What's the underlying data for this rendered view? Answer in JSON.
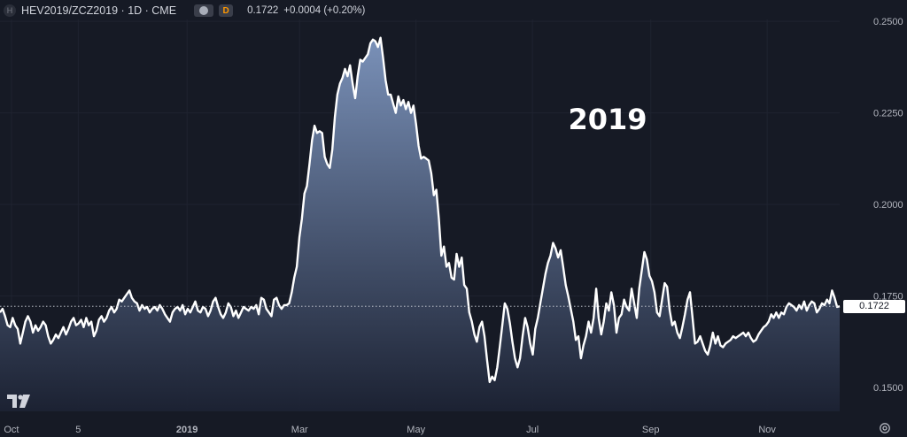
{
  "header": {
    "symbol_icon": "H",
    "symbol": "HEV2019/ZCZ2019 · 1D · CME",
    "badge_letter": "D",
    "last": "0.1722",
    "change": "+0.0004 (+0.20%)"
  },
  "price_label": "0.1722",
  "icons": {
    "logo": "tradingview-logo-icon",
    "settings": "gear-icon"
  },
  "colors": {
    "line": "#ffffff",
    "fill_top": "#7f97c0",
    "fill_bottom": "#1c2233",
    "background": "#161a25"
  },
  "chart_data": {
    "type": "area",
    "annotation": "2019",
    "last_value": 0.1722,
    "ylim": [
      0.1435,
      0.2505
    ],
    "y_ticks": [
      "0.1500",
      "0.1750",
      "0.2000",
      "0.2250",
      "0.2500"
    ],
    "y_tick_values": [
      0.15,
      0.175,
      0.2,
      0.225,
      0.25
    ],
    "x_tick_labels": [
      "Oct",
      "5",
      "2019",
      "Mar",
      "May",
      "Jul",
      "Sep",
      "Nov"
    ],
    "x_tick_values": [
      "2018-10-01",
      "2018-11-05",
      "2019-01-01",
      "2019-03-01",
      "2019-05-01",
      "2019-07-01",
      "2019-09-01",
      "2019-11-01"
    ],
    "xlim": [
      "2018-09-25",
      "2019-12-09"
    ],
    "start_date": "2018-09-25",
    "grid": true,
    "series": [
      {
        "values": [
          0.1705,
          0.1715,
          0.1695,
          0.167,
          0.1665,
          0.169,
          0.167,
          0.166,
          0.162,
          0.165,
          0.168,
          0.1695,
          0.168,
          0.165,
          0.167,
          0.1655,
          0.1665,
          0.168,
          0.167,
          0.164,
          0.162,
          0.163,
          0.1645,
          0.1635,
          0.165,
          0.1665,
          0.1645,
          0.166,
          0.168,
          0.169,
          0.167,
          0.1675,
          0.1685,
          0.1665,
          0.169,
          0.167,
          0.168,
          0.164,
          0.1655,
          0.1685,
          0.1695,
          0.168,
          0.169,
          0.171,
          0.172,
          0.1705,
          0.1715,
          0.174,
          0.1735,
          0.1745,
          0.1755,
          0.1765,
          0.1745,
          0.1735,
          0.173,
          0.171,
          0.1725,
          0.1715,
          0.172,
          0.1705,
          0.1715,
          0.172,
          0.171,
          0.1725,
          0.1715,
          0.17,
          0.169,
          0.168,
          0.1705,
          0.1715,
          0.172,
          0.171,
          0.1725,
          0.17,
          0.1715,
          0.1705,
          0.172,
          0.1735,
          0.171,
          0.1705,
          0.172,
          0.1715,
          0.1695,
          0.171,
          0.1735,
          0.1745,
          0.172,
          0.17,
          0.169,
          0.1705,
          0.173,
          0.172,
          0.1695,
          0.171,
          0.169,
          0.1705,
          0.172,
          0.1715,
          0.171,
          0.172,
          0.1715,
          0.1725,
          0.17,
          0.1745,
          0.174,
          0.1715,
          0.1705,
          0.1695,
          0.174,
          0.1745,
          0.1725,
          0.1715,
          0.1725,
          0.1725,
          0.173,
          0.176,
          0.18,
          0.183,
          0.191,
          0.196,
          0.203,
          0.205,
          0.211,
          0.2175,
          0.2215,
          0.2195,
          0.22,
          0.2195,
          0.213,
          0.211,
          0.21,
          0.215,
          0.224,
          0.23,
          0.233,
          0.2345,
          0.237,
          0.235,
          0.238,
          0.233,
          0.229,
          0.235,
          0.2395,
          0.239,
          0.24,
          0.241,
          0.244,
          0.245,
          0.2445,
          0.243,
          0.2455,
          0.24,
          0.234,
          0.23,
          0.23,
          0.2275,
          0.225,
          0.2295,
          0.227,
          0.2285,
          0.226,
          0.228,
          0.225,
          0.227,
          0.222,
          0.216,
          0.2125,
          0.213,
          0.2125,
          0.212,
          0.2085,
          0.2025,
          0.204,
          0.196,
          0.186,
          0.1885,
          0.183,
          0.184,
          0.18,
          0.1795,
          0.1865,
          0.183,
          0.1855,
          0.178,
          0.177,
          0.1705,
          0.168,
          0.1645,
          0.1625,
          0.1665,
          0.168,
          0.164,
          0.1575,
          0.1515,
          0.153,
          0.152,
          0.1555,
          0.161,
          0.167,
          0.173,
          0.1715,
          0.1675,
          0.1625,
          0.158,
          0.1555,
          0.158,
          0.164,
          0.169,
          0.1665,
          0.162,
          0.159,
          0.166,
          0.169,
          0.173,
          0.177,
          0.181,
          0.184,
          0.186,
          0.1895,
          0.188,
          0.1855,
          0.1875,
          0.183,
          0.178,
          0.175,
          0.1715,
          0.168,
          0.163,
          0.164,
          0.158,
          0.1615,
          0.164,
          0.168,
          0.165,
          0.169,
          0.177,
          0.169,
          0.1645,
          0.168,
          0.173,
          0.171,
          0.176,
          0.1725,
          0.165,
          0.169,
          0.17,
          0.174,
          0.172,
          0.171,
          0.177,
          0.173,
          0.169,
          0.177,
          0.182,
          0.187,
          0.185,
          0.1805,
          0.179,
          0.176,
          0.1705,
          0.1695,
          0.174,
          0.1785,
          0.1775,
          0.171,
          0.167,
          0.168,
          0.165,
          0.1635,
          0.1665,
          0.17,
          0.174,
          0.176,
          0.169,
          0.162,
          0.1625,
          0.164,
          0.162,
          0.16,
          0.159,
          0.1615,
          0.165,
          0.162,
          0.164,
          0.1615,
          0.161,
          0.162,
          0.1625,
          0.163,
          0.164,
          0.1635,
          0.164,
          0.1645,
          0.165,
          0.164,
          0.165,
          0.1635,
          0.1625,
          0.163,
          0.1645,
          0.1655,
          0.1665,
          0.167,
          0.168,
          0.17,
          0.169,
          0.1705,
          0.169,
          0.1705,
          0.17,
          0.172,
          0.173,
          0.1725,
          0.172,
          0.171,
          0.1725,
          0.1715,
          0.1735,
          0.171,
          0.1725,
          0.1735,
          0.173,
          0.1705,
          0.1715,
          0.173,
          0.1725,
          0.174,
          0.173,
          0.1765,
          0.1745,
          0.172,
          0.1722
        ]
      }
    ]
  }
}
